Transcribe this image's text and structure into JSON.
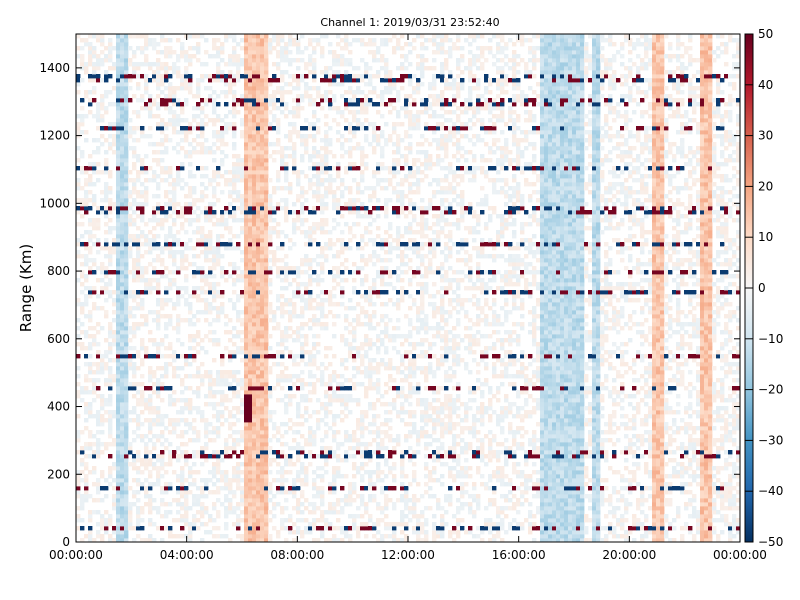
{
  "chart_data": {
    "type": "heatmap",
    "title": "Channel 1: 2019/03/31 23:52:40",
    "xlabel": "",
    "ylabel": "Range (Km)",
    "x_ticks": [
      "00:00:00",
      "04:00:00",
      "08:00:00",
      "12:00:00",
      "16:00:00",
      "20:00:00",
      "00:00:00"
    ],
    "x_range_hours": [
      0,
      24
    ],
    "y_ticks": [
      0,
      200,
      400,
      600,
      800,
      1000,
      1200,
      1400
    ],
    "ylim": [
      0,
      1500
    ],
    "colorbar": {
      "colormap": "RdBu_r",
      "range": [
        -50,
        50
      ],
      "ticks": [
        50,
        40,
        30,
        20,
        10,
        0,
        -10,
        -20,
        -30,
        -40,
        -50
      ],
      "colors": {
        "low": "#053061",
        "mid": "#f7f7f7",
        "high": "#67001f"
      }
    },
    "grid": false,
    "features": {
      "positive_bands_hours": [
        [
          6.1,
          6.9
        ],
        [
          20.8,
          21.3
        ],
        [
          22.6,
          23.0
        ]
      ],
      "negative_bands_hours": [
        [
          1.4,
          1.9
        ],
        [
          16.8,
          18.4
        ],
        [
          18.6,
          18.9
        ]
      ],
      "range_rows_km": [
        1370,
        1300,
        1220,
        1100,
        980,
        880,
        800,
        740,
        550,
        455,
        260,
        160,
        40
      ],
      "strong_feature": {
        "hour": 6.25,
        "km_from": 360,
        "km_to": 440,
        "value": 50
      }
    }
  }
}
